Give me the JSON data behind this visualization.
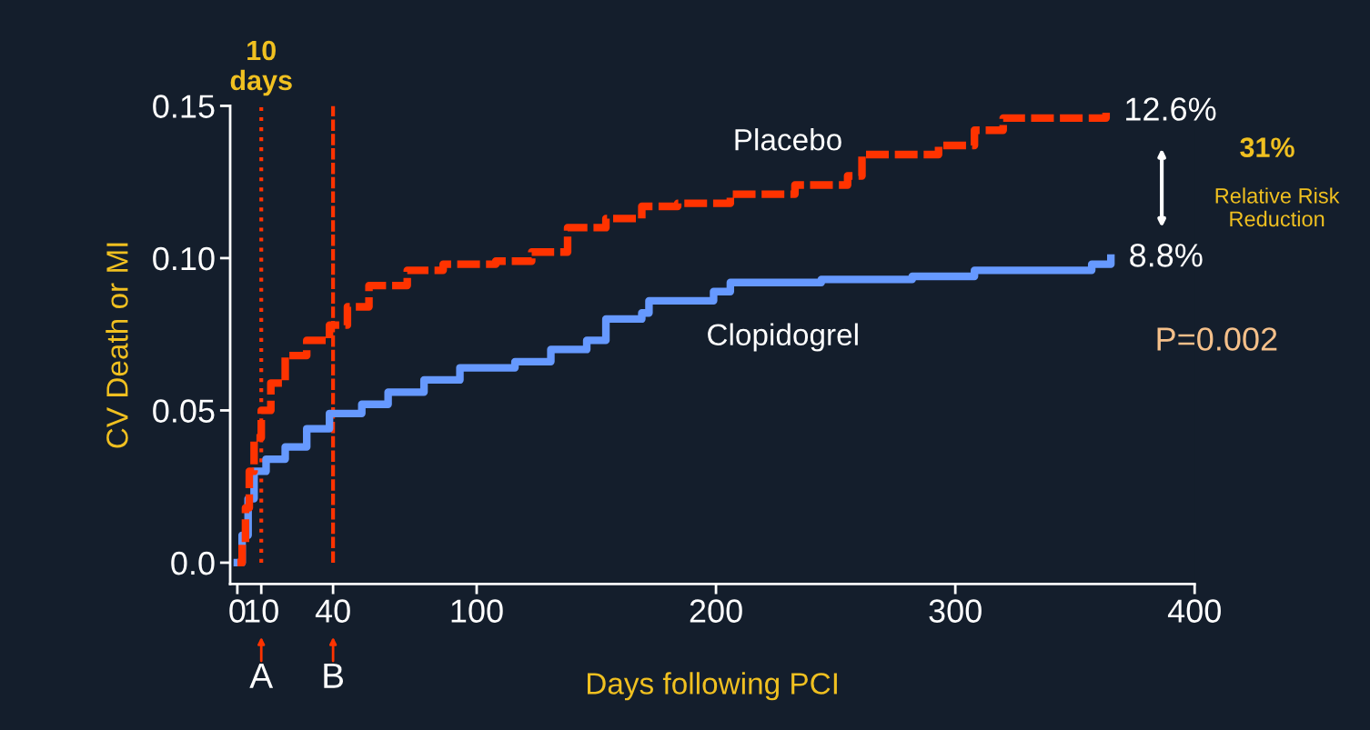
{
  "chart_data": {
    "type": "step",
    "xlabel": "Days following PCI",
    "ylabel": "CV Death or MI",
    "xlim": [
      -3,
      400
    ],
    "ylim": [
      -0.007,
      0.15
    ],
    "xticks": [
      0,
      10,
      40,
      100,
      200,
      300,
      400
    ],
    "yticks": [
      {
        "value": 0,
        "label": "0.0"
      },
      {
        "value": 0.05,
        "label": "0.05"
      },
      {
        "value": 0.1,
        "label": "0.10"
      },
      {
        "value": 0.15,
        "label": "0.15"
      }
    ],
    "grid": false,
    "series": [
      {
        "name": "Placebo",
        "color": "#ff3300",
        "line_style": "dashed",
        "x": [
          0,
          2,
          3.4,
          5,
          7,
          10,
          14,
          20,
          29,
          38.5,
          46,
          55,
          71,
          86,
          108,
          123,
          138,
          154,
          169,
          184,
          206,
          233,
          255,
          261,
          282,
          293,
          308,
          320,
          357,
          363
        ],
        "values": [
          0,
          0.006,
          0.018,
          0.03,
          0.041,
          0.05,
          0.059,
          0.068,
          0.073,
          0.078,
          0.084,
          0.091,
          0.096,
          0.098,
          0.099,
          0.102,
          0.11,
          0.113,
          0.117,
          0.118,
          0.121,
          0.124,
          0.127,
          0.134,
          0.134,
          0.137,
          0.142,
          0.146,
          0.146,
          0.148
        ]
      },
      {
        "name": "Clopidogrel",
        "color": "#6699ff",
        "line_style": "solid",
        "x": [
          0,
          2,
          4.5,
          7,
          12,
          20,
          29,
          38.5,
          52,
          63,
          78,
          93,
          116,
          131,
          146,
          154,
          169,
          172,
          199,
          206,
          244,
          282,
          308,
          357,
          365
        ],
        "values": [
          0,
          0.009,
          0.021,
          0.03,
          0.034,
          0.038,
          0.044,
          0.049,
          0.052,
          0.056,
          0.06,
          0.064,
          0.066,
          0.07,
          0.073,
          0.08,
          0.082,
          0.086,
          0.089,
          0.092,
          0.093,
          0.094,
          0.096,
          0.098,
          0.1
        ]
      }
    ],
    "ref_lines": [
      {
        "axis": "x",
        "value": 10,
        "label": "10\ndays",
        "color": "#ff3300",
        "line_style": "dotted"
      },
      {
        "axis": "x",
        "value": 40,
        "color": "#ff3300",
        "line_style": "dashed"
      }
    ],
    "annotations": [
      "A",
      "B",
      "12.6%",
      "8.8%",
      "31%",
      "Relative Risk\nReduction",
      "P=0.002"
    ]
  }
}
